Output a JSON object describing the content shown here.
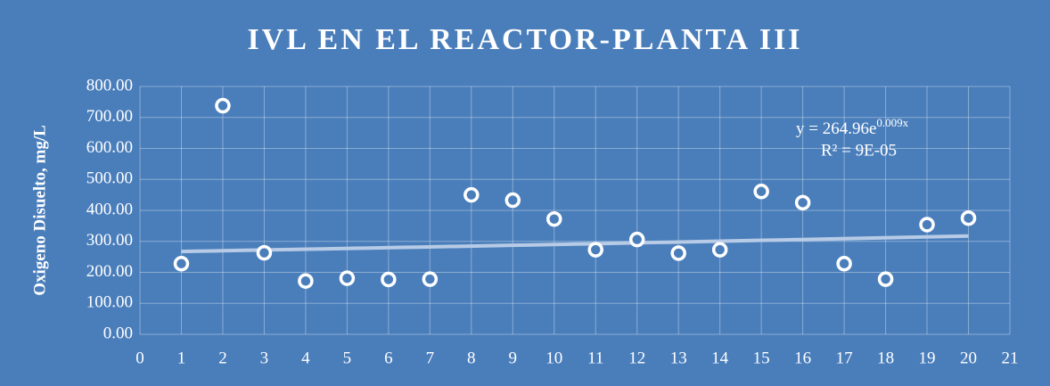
{
  "chart_data": {
    "type": "scatter",
    "title": "IVL EN EL REACTOR-PLANTA III",
    "y_label": "Oxigeno Disuelto, mg/L",
    "x": [
      1,
      2,
      3,
      4,
      5,
      6,
      7,
      8,
      9,
      10,
      11,
      12,
      13,
      14,
      15,
      16,
      17,
      18,
      19,
      20
    ],
    "series": [
      {
        "name": null,
        "color": "#ffffff",
        "values": [
          228,
          738,
          263,
          172,
          181,
          177,
          178,
          450,
          433,
          372,
          273,
          306,
          262,
          273,
          461,
          425,
          228,
          178,
          354,
          375
        ]
      }
    ],
    "xlim": [
      0,
      21
    ],
    "xticks": [
      0,
      1,
      2,
      3,
      4,
      5,
      6,
      7,
      8,
      9,
      10,
      11,
      12,
      13,
      14,
      15,
      16,
      17,
      18,
      19,
      20,
      21
    ],
    "ylim": [
      0,
      800
    ],
    "yticks": [
      {
        "value": 0,
        "label": "0.00"
      },
      {
        "value": 100,
        "label": "100.00"
      },
      {
        "value": 200,
        "label": "200.00"
      },
      {
        "value": 300,
        "label": "300.00"
      },
      {
        "value": 400,
        "label": "400.00"
      },
      {
        "value": 500,
        "label": "500.00"
      },
      {
        "value": 600,
        "label": "600.00"
      },
      {
        "value": 700,
        "label": "700.00"
      },
      {
        "value": 800,
        "label": "800.00"
      }
    ],
    "grid": true,
    "background": "#4a7ebb",
    "trendline": {
      "kind": "exponential",
      "a": 264.96,
      "b": 0.009,
      "color": "#b7cbe6",
      "equation": "y = 264.96e",
      "exponent": "0.009x",
      "r2": "R² = 9E-05"
    }
  }
}
